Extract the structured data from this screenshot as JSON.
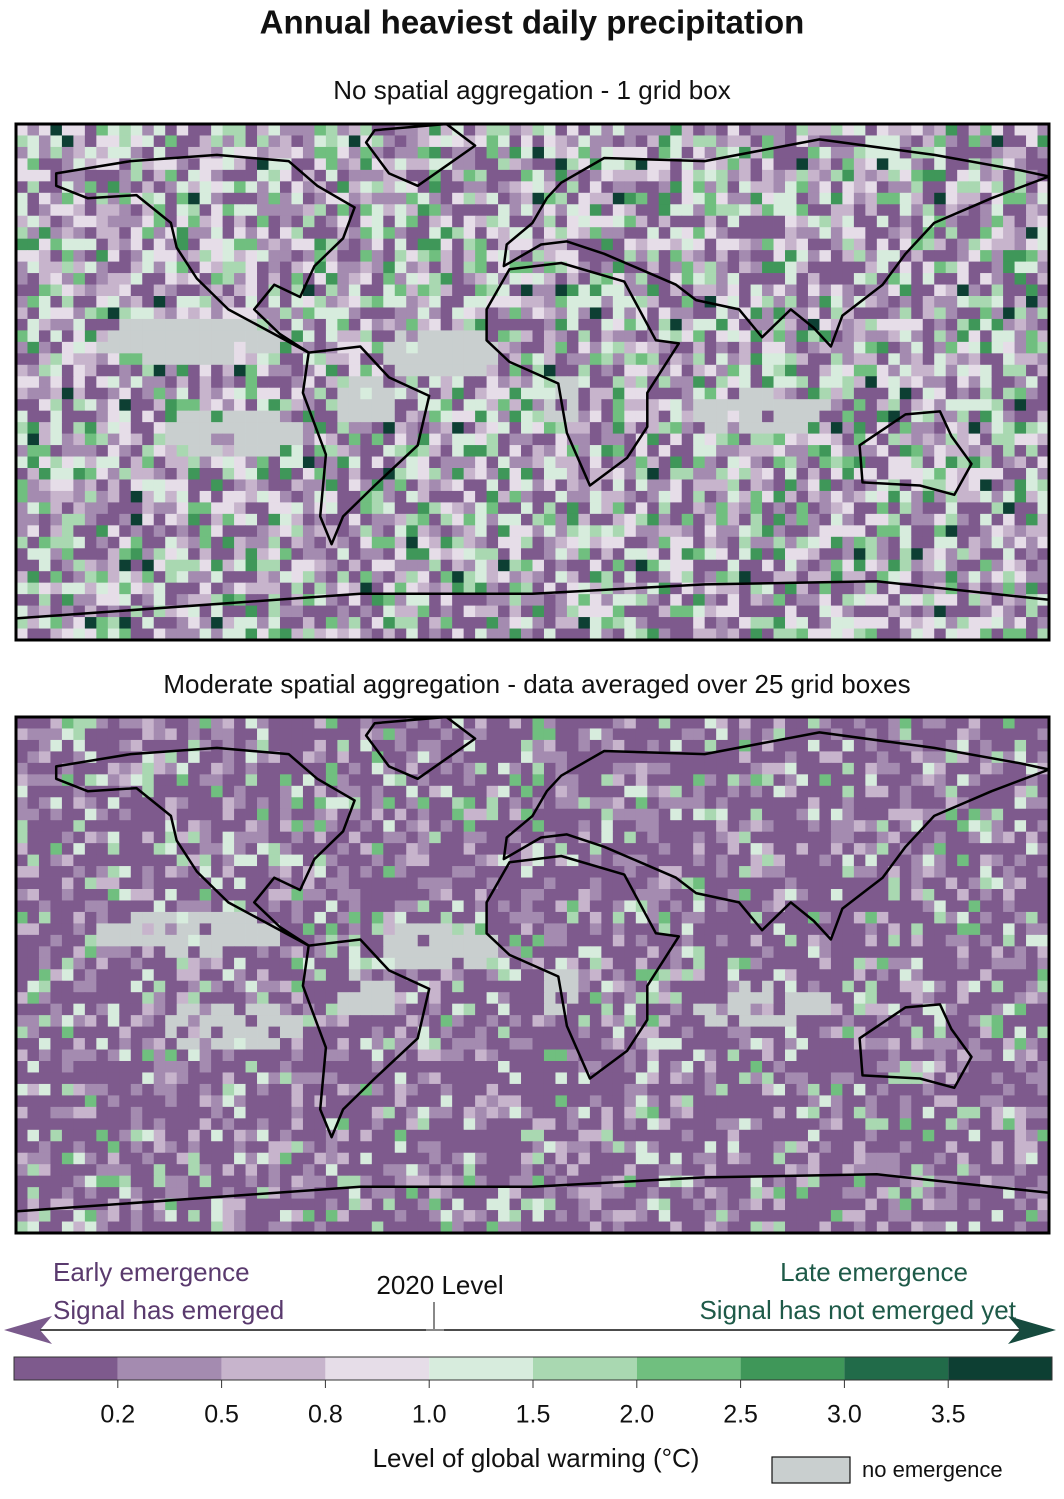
{
  "title": "Annual heaviest daily precipitation",
  "panels": [
    {
      "subtitle": "No spatial aggregation - 1 grid box"
    },
    {
      "subtitle": "Moderate spatial aggregation - data averaged over 25 grid boxes"
    }
  ],
  "legend": {
    "early": {
      "line1": "Early emergence",
      "line2": "Signal has emerged"
    },
    "late": {
      "line1": "Late emergence",
      "line2": "Signal has not emerged yet"
    },
    "marker": "2020 Level",
    "colorbar": {
      "colors": [
        "#7e5a8d",
        "#a48bb0",
        "#c7b4cc",
        "#e6dde8",
        "#d7ecdd",
        "#a9d8b1",
        "#70bf7f",
        "#3f9759",
        "#216b49",
        "#0d3f33"
      ],
      "ticks": [
        0.2,
        0.5,
        0.8,
        {
          "value": 1,
          "label": "1.0"
        },
        1.5,
        {
          "value": 2,
          "label": "2.0"
        },
        2.5,
        {
          "value": 3,
          "label": "3.0"
        },
        3.5
      ]
    },
    "axis_label": "Level of global warming (°C)",
    "no_emergence": {
      "label": "no emergence",
      "color": "#c9cfcf"
    }
  }
}
